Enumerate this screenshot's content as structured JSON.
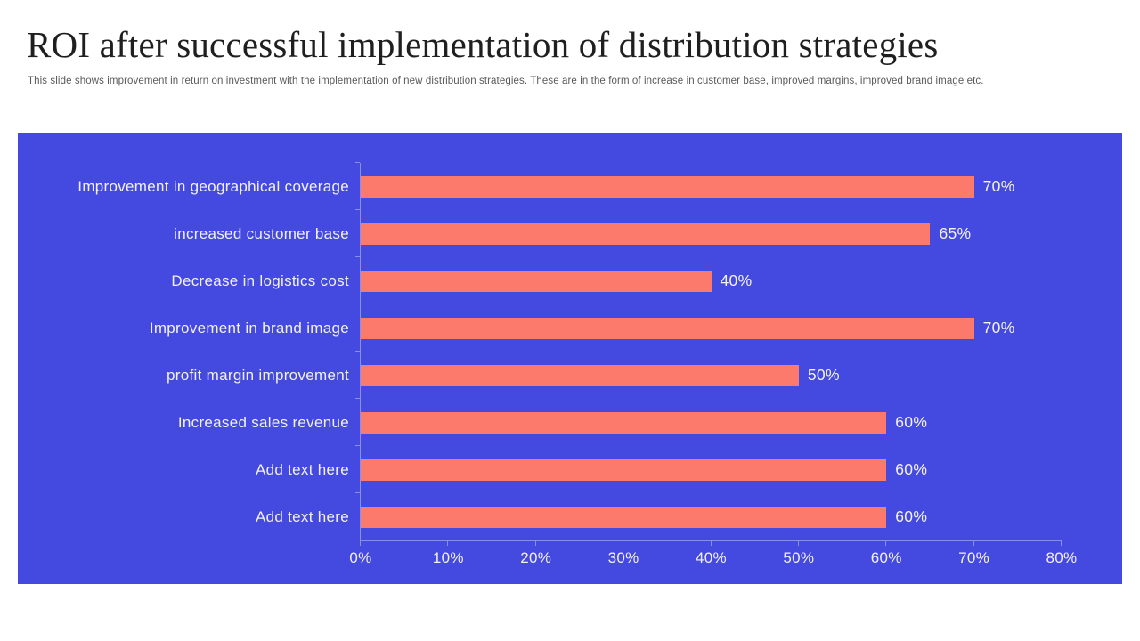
{
  "slide": {
    "title": "ROI after successful implementation of distribution strategies",
    "subtitle": "This slide shows improvement in return on investment with the implementation of new distribution strategies. These are in the form of increase in customer base, improved margins, improved brand image etc."
  },
  "chart_data": {
    "type": "bar",
    "orientation": "horizontal",
    "title": "",
    "xlabel": "",
    "ylabel": "",
    "categories": [
      "Improvement in geographical coverage",
      "increased customer base",
      "Decrease in logistics cost",
      "Improvement in brand image",
      "profit margin improvement",
      "Increased sales revenue",
      "Add text here",
      "Add text here"
    ],
    "values": [
      70,
      65,
      40,
      70,
      50,
      60,
      60,
      60
    ],
    "data_labels": [
      "70%",
      "65%",
      "40%",
      "70%",
      "50%",
      "60%",
      "60%",
      "60%"
    ],
    "x_ticks": [
      "0%",
      "10%",
      "20%",
      "30%",
      "40%",
      "50%",
      "60%",
      "70%",
      "80%"
    ],
    "xlim": [
      0,
      80
    ],
    "grid": "off",
    "legend": "none",
    "colors": {
      "panel_background": "#4449E0",
      "bar": "#FB7A6C",
      "chart_text": "#F2F1EE",
      "axis_line": "rgba(255,255,255,0.38)",
      "title_text": "#1F1F1F",
      "subtitle_text": "#5A5A5A"
    }
  }
}
